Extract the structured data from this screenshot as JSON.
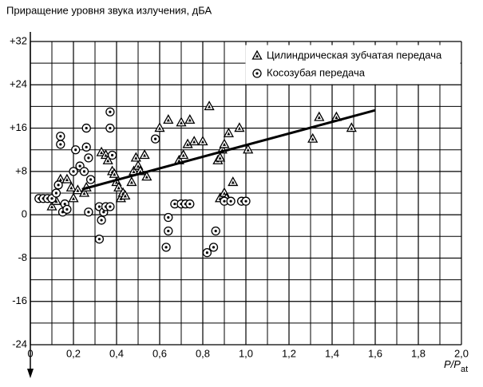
{
  "chart_data": {
    "type": "scatter",
    "title": "Приращение уровня звука излучения, дБА",
    "x_label": {
      "main": "P/P",
      "sub": "at"
    },
    "xlim": [
      0,
      2
    ],
    "ylim": [
      -24,
      32
    ],
    "xticks": [
      0,
      {
        "value": 0.2,
        "label": "0,2"
      },
      {
        "value": 0.4,
        "label": "0,4"
      },
      {
        "value": 0.6,
        "label": "0,6"
      },
      {
        "value": 0.8,
        "label": "0,8"
      },
      {
        "value": 1,
        "label": "1,0"
      },
      {
        "value": 1.2,
        "label": "1,2"
      },
      {
        "value": 1.4,
        "label": "1,4"
      },
      {
        "value": 1.6,
        "label": "1,6"
      },
      {
        "value": 1.8,
        "label": "1,8"
      },
      {
        "value": 2,
        "label": "2,0"
      }
    ],
    "yticks": [
      -24,
      -16,
      -8,
      0,
      {
        "value": 8,
        "label": "+8"
      },
      {
        "value": 16,
        "label": "+16"
      },
      {
        "value": 24,
        "label": "+24"
      },
      {
        "value": 32,
        "label": "+32"
      }
    ],
    "minor_xticks": [
      0.1,
      0.3,
      0.5,
      0.7,
      0.9,
      1.1,
      1.3,
      1.5,
      1.7,
      1.9
    ],
    "minor_yticks": [
      -20,
      -12,
      -4,
      4,
      12,
      20,
      28
    ],
    "grid": true,
    "legend": "upper right",
    "series": [
      {
        "name": "Цилиндрическая зубчатая передача",
        "marker": "triangle",
        "color": "#000",
        "x": [
          0.1,
          0.12,
          0.14,
          0.17,
          0.19,
          0.2,
          0.22,
          0.25,
          0.26,
          0.33,
          0.35,
          0.36,
          0.38,
          0.39,
          0.4,
          0.41,
          0.42,
          0.43,
          0.44,
          0.47,
          0.48,
          0.49,
          0.5,
          0.51,
          0.53,
          0.54,
          0.6,
          0.64,
          0.69,
          0.7,
          0.71,
          0.73,
          0.74,
          0.76,
          0.8,
          0.83,
          0.87,
          0.88,
          0.89,
          0.88,
          0.9,
          0.9,
          0.91,
          0.92,
          0.94,
          0.97,
          1.01,
          1.31,
          1.34,
          1.42,
          1.49
        ],
        "values": [
          1.5,
          2.5,
          6.5,
          6.5,
          5,
          3,
          4.5,
          4,
          5,
          11.5,
          11,
          10,
          8,
          7.5,
          6,
          5,
          3,
          4,
          3.5,
          6,
          8,
          10.5,
          9,
          8,
          11,
          7,
          16,
          17.5,
          10,
          17,
          11,
          13,
          17.5,
          13.5,
          13.5,
          20,
          10,
          10.5,
          12,
          3,
          13,
          4,
          3,
          15,
          6,
          16,
          12,
          14,
          18,
          18,
          16
        ]
      },
      {
        "name": "Косозубая передача",
        "marker": "circle-dot",
        "color": "#000",
        "x": [
          0.04,
          0.06,
          0.08,
          0.1,
          0.12,
          0.13,
          0.14,
          0.14,
          0.15,
          0.16,
          0.17,
          0.2,
          0.21,
          0.23,
          0.25,
          0.26,
          0.26,
          0.27,
          0.27,
          0.28,
          0.32,
          0.32,
          0.33,
          0.34,
          0.35,
          0.37,
          0.37,
          0.37,
          0.38,
          0.58,
          0.63,
          0.64,
          0.64,
          0.67,
          0.7,
          0.72,
          0.74,
          0.82,
          0.85,
          0.86,
          0.9,
          0.93,
          0.98,
          1.0
        ],
        "values": [
          3,
          3,
          3,
          3,
          4,
          5.5,
          13,
          14.5,
          0.5,
          2,
          1,
          8,
          12,
          9,
          8,
          16,
          12.5,
          10.5,
          0.5,
          6.5,
          -4.5,
          1.5,
          -1,
          0.5,
          1.5,
          1.5,
          19,
          16,
          11,
          14,
          -6,
          -0.5,
          -3,
          2,
          2,
          2,
          2,
          -7,
          -6,
          -3,
          2.5,
          2.5,
          2.5,
          2.5
        ]
      }
    ],
    "trend": {
      "x": [
        0.24,
        1.6
      ],
      "values": [
        4.7,
        19.3
      ]
    }
  }
}
